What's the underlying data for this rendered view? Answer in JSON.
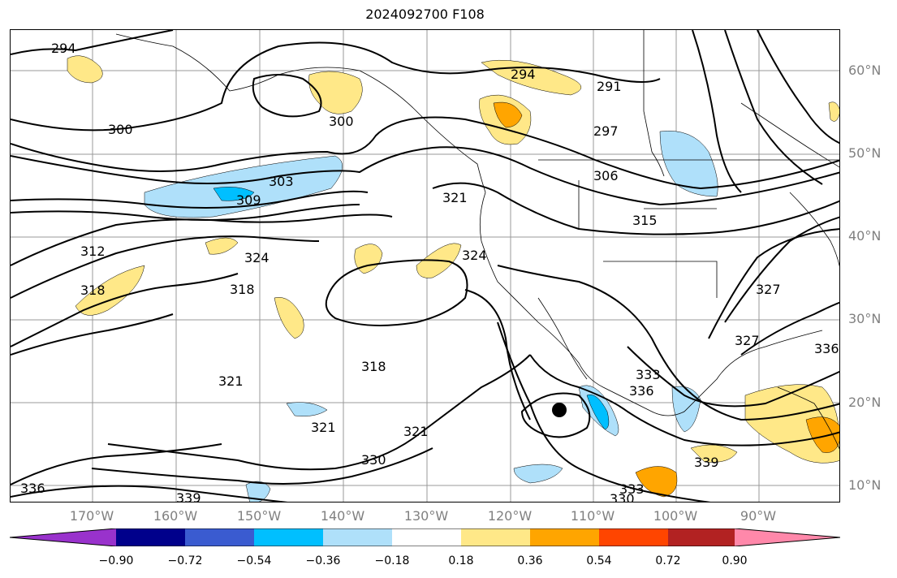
{
  "title": "2024092700 F108",
  "lat_labels": [
    "60°N",
    "50°N",
    "40°N",
    "30°N",
    "20°N",
    "10°N"
  ],
  "lon_labels": [
    "170°W",
    "160°W",
    "150°W",
    "140°W",
    "130°W",
    "120°W",
    "110°W",
    "100°W",
    "90°W"
  ],
  "colorbar": {
    "ticks": [
      "−0.90",
      "−0.72",
      "−0.54",
      "−0.36",
      "−0.18",
      "0.18",
      "0.36",
      "0.54",
      "0.72",
      "0.90"
    ],
    "colors": [
      "#9932cc",
      "#00008b",
      "#3a5bd0",
      "#00bfff",
      "#afe0fa",
      "#ffffff",
      "#ffe888",
      "#ffa500",
      "#ff4500",
      "#b22222",
      "#ff88aa"
    ]
  },
  "contour_labels": {
    "c294a": "294",
    "c300a": "300",
    "c300b": "300",
    "c303": "303",
    "c309": "309",
    "c312": "312",
    "c318a": "318",
    "c324a": "324",
    "c318b": "318",
    "c321a": "321",
    "c321b": "321",
    "c321c": "321",
    "c318c": "318",
    "c321d": "321",
    "c324b": "324",
    "c294b": "294",
    "c291": "291",
    "c297": "297",
    "c306": "306",
    "c315": "315",
    "c327a": "327",
    "c327b": "327",
    "c330a": "330",
    "c333a": "333",
    "c336a": "336",
    "c339a": "339",
    "c336b": "336",
    "c339b": "339",
    "c333b": "333",
    "c330b": "330",
    "c336c": "336"
  }
}
